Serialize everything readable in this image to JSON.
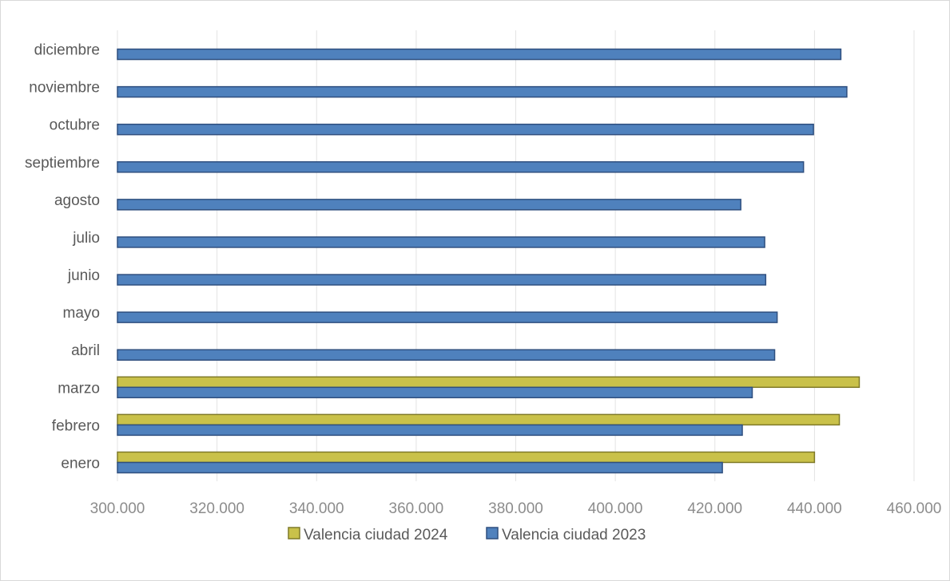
{
  "chart_data": {
    "type": "bar",
    "orientation": "horizontal",
    "categories": [
      "enero",
      "febrero",
      "marzo",
      "abril",
      "mayo",
      "junio",
      "julio",
      "agosto",
      "septiembre",
      "octubre",
      "noviembre",
      "diciembre"
    ],
    "series": [
      {
        "name": "Valencia ciudad 2024",
        "color": "#c9c14a",
        "stroke": "#7f7a28",
        "values": [
          440000,
          445000,
          449000,
          null,
          null,
          null,
          null,
          null,
          null,
          null,
          null,
          null
        ]
      },
      {
        "name": "Valencia ciudad 2023",
        "color": "#4f81bd",
        "stroke": "#2f4f7f",
        "values": [
          421500,
          425500,
          427500,
          432000,
          432500,
          430200,
          430000,
          425200,
          437800,
          439800,
          446500,
          445300
        ]
      }
    ],
    "xlim": [
      300000,
      460000
    ],
    "xticks": [
      "300.000",
      "320.000",
      "340.000",
      "360.000",
      "380.000",
      "400.000",
      "420.000",
      "440.000",
      "460.000"
    ],
    "xtick_step": 20000,
    "grid": true,
    "legend_position": "bottom"
  }
}
